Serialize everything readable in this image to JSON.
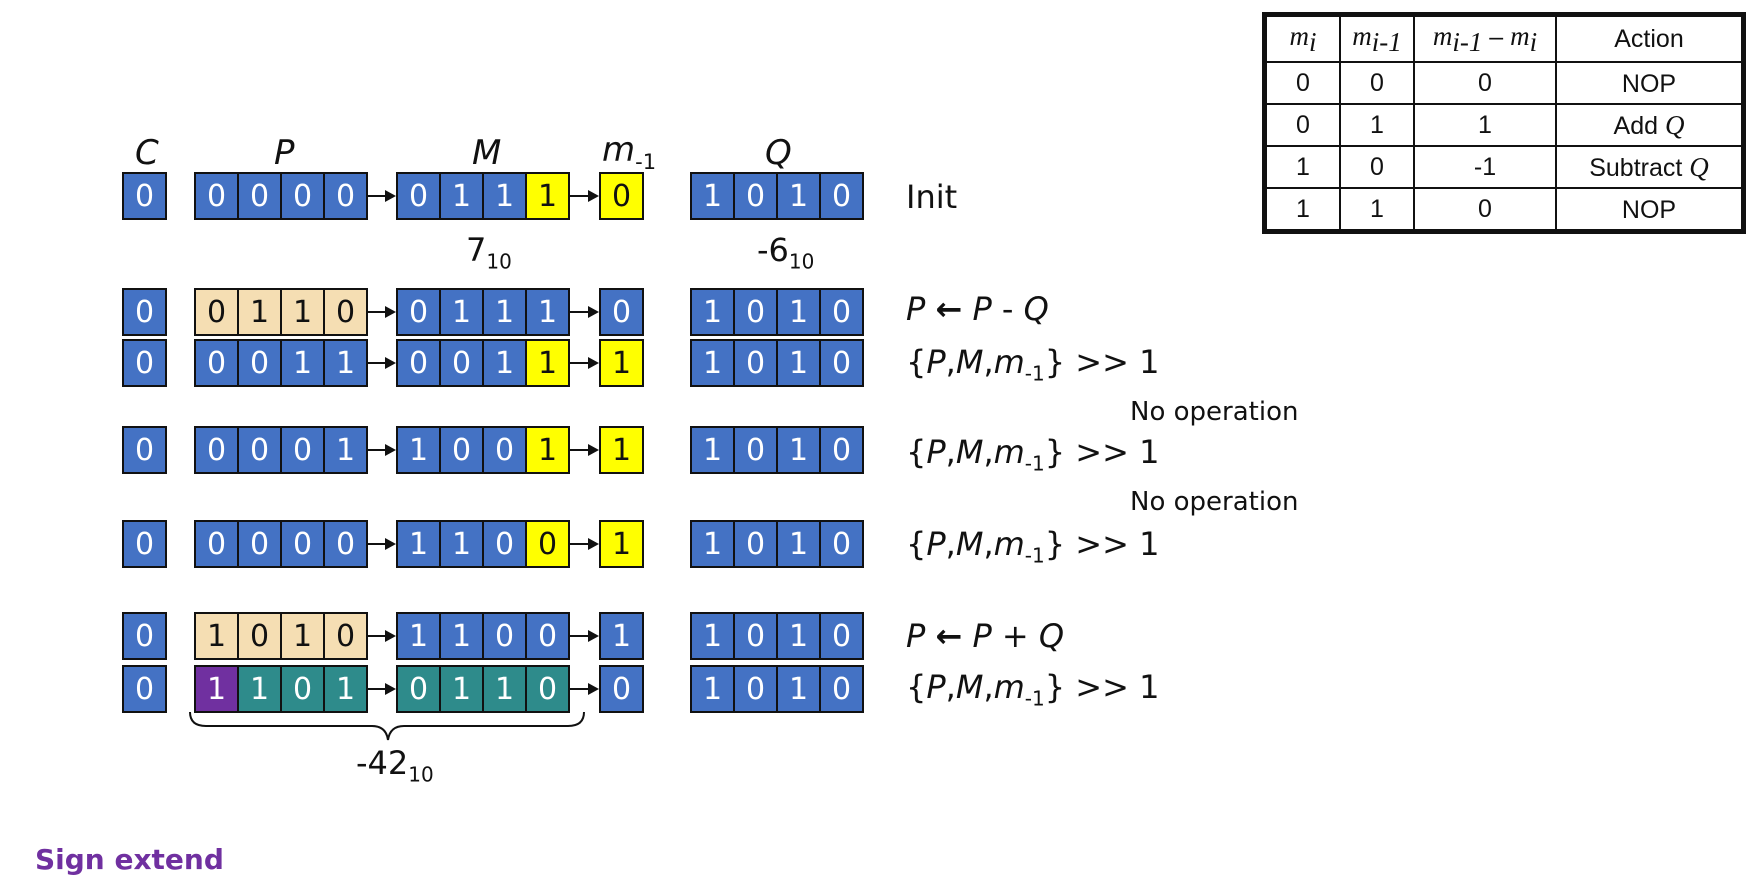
{
  "headers": {
    "c": "C",
    "p": "P",
    "m": "M",
    "m_minus1_base": "m",
    "m_minus1_sub": "-1",
    "q": "Q"
  },
  "colors": {
    "blue": "#4472c4",
    "yellow": "#ffff00",
    "tan": "#f5deb3",
    "teal": "#2e8b8b",
    "purple": "#7030a0"
  },
  "rows": [
    {
      "c": {
        "v": "0",
        "color": "blue"
      },
      "p": [
        {
          "v": "0",
          "color": "blue"
        },
        {
          "v": "0",
          "color": "blue"
        },
        {
          "v": "0",
          "color": "blue"
        },
        {
          "v": "0",
          "color": "blue"
        }
      ],
      "m": [
        {
          "v": "0",
          "color": "blue"
        },
        {
          "v": "1",
          "color": "blue"
        },
        {
          "v": "1",
          "color": "blue"
        },
        {
          "v": "1",
          "color": "yellow"
        }
      ],
      "m1": {
        "v": "0",
        "color": "yellow"
      },
      "q": [
        {
          "v": "1",
          "color": "blue"
        },
        {
          "v": "0",
          "color": "blue"
        },
        {
          "v": "1",
          "color": "blue"
        },
        {
          "v": "0",
          "color": "blue"
        }
      ],
      "label": "Init",
      "label_kind": "plain"
    },
    {
      "c": {
        "v": "0",
        "color": "blue"
      },
      "p": [
        {
          "v": "0",
          "color": "tan"
        },
        {
          "v": "1",
          "color": "tan"
        },
        {
          "v": "1",
          "color": "tan"
        },
        {
          "v": "0",
          "color": "tan"
        }
      ],
      "m": [
        {
          "v": "0",
          "color": "blue"
        },
        {
          "v": "1",
          "color": "blue"
        },
        {
          "v": "1",
          "color": "blue"
        },
        {
          "v": "1",
          "color": "blue"
        }
      ],
      "m1": {
        "v": "0",
        "color": "blue"
      },
      "q": [
        {
          "v": "1",
          "color": "blue"
        },
        {
          "v": "0",
          "color": "blue"
        },
        {
          "v": "1",
          "color": "blue"
        },
        {
          "v": "0",
          "color": "blue"
        }
      ],
      "label": "P ← P - Q",
      "label_kind": "op"
    },
    {
      "c": {
        "v": "0",
        "color": "blue"
      },
      "p": [
        {
          "v": "0",
          "color": "blue"
        },
        {
          "v": "0",
          "color": "blue"
        },
        {
          "v": "1",
          "color": "blue"
        },
        {
          "v": "1",
          "color": "blue"
        }
      ],
      "m": [
        {
          "v": "0",
          "color": "blue"
        },
        {
          "v": "0",
          "color": "blue"
        },
        {
          "v": "1",
          "color": "blue"
        },
        {
          "v": "1",
          "color": "yellow"
        }
      ],
      "m1": {
        "v": "1",
        "color": "yellow"
      },
      "q": [
        {
          "v": "1",
          "color": "blue"
        },
        {
          "v": "0",
          "color": "blue"
        },
        {
          "v": "1",
          "color": "blue"
        },
        {
          "v": "0",
          "color": "blue"
        }
      ],
      "label": "{P,M,m-1} >> 1",
      "label_kind": "shift"
    },
    {
      "c": {
        "v": "0",
        "color": "blue"
      },
      "p": [
        {
          "v": "0",
          "color": "blue"
        },
        {
          "v": "0",
          "color": "blue"
        },
        {
          "v": "0",
          "color": "blue"
        },
        {
          "v": "1",
          "color": "blue"
        }
      ],
      "m": [
        {
          "v": "1",
          "color": "blue"
        },
        {
          "v": "0",
          "color": "blue"
        },
        {
          "v": "0",
          "color": "blue"
        },
        {
          "v": "1",
          "color": "yellow"
        }
      ],
      "m1": {
        "v": "1",
        "color": "yellow"
      },
      "q": [
        {
          "v": "1",
          "color": "blue"
        },
        {
          "v": "0",
          "color": "blue"
        },
        {
          "v": "1",
          "color": "blue"
        },
        {
          "v": "0",
          "color": "blue"
        }
      ],
      "label": "{P,M,m-1} >> 1",
      "label_kind": "shift"
    },
    {
      "c": {
        "v": "0",
        "color": "blue"
      },
      "p": [
        {
          "v": "0",
          "color": "blue"
        },
        {
          "v": "0",
          "color": "blue"
        },
        {
          "v": "0",
          "color": "blue"
        },
        {
          "v": "0",
          "color": "blue"
        }
      ],
      "m": [
        {
          "v": "1",
          "color": "blue"
        },
        {
          "v": "1",
          "color": "blue"
        },
        {
          "v": "0",
          "color": "blue"
        },
        {
          "v": "0",
          "color": "yellow"
        }
      ],
      "m1": {
        "v": "1",
        "color": "yellow"
      },
      "q": [
        {
          "v": "1",
          "color": "blue"
        },
        {
          "v": "0",
          "color": "blue"
        },
        {
          "v": "1",
          "color": "blue"
        },
        {
          "v": "0",
          "color": "blue"
        }
      ],
      "label": "{P,M,m-1} >> 1",
      "label_kind": "shift"
    },
    {
      "c": {
        "v": "0",
        "color": "blue"
      },
      "p": [
        {
          "v": "1",
          "color": "tan"
        },
        {
          "v": "0",
          "color": "tan"
        },
        {
          "v": "1",
          "color": "tan"
        },
        {
          "v": "0",
          "color": "tan"
        }
      ],
      "m": [
        {
          "v": "1",
          "color": "blue"
        },
        {
          "v": "1",
          "color": "blue"
        },
        {
          "v": "0",
          "color": "blue"
        },
        {
          "v": "0",
          "color": "blue"
        }
      ],
      "m1": {
        "v": "1",
        "color": "blue"
      },
      "q": [
        {
          "v": "1",
          "color": "blue"
        },
        {
          "v": "0",
          "color": "blue"
        },
        {
          "v": "1",
          "color": "blue"
        },
        {
          "v": "0",
          "color": "blue"
        }
      ],
      "label": "P ← P + Q",
      "label_kind": "op"
    },
    {
      "c": {
        "v": "0",
        "color": "blue"
      },
      "p": [
        {
          "v": "1",
          "color": "purple"
        },
        {
          "v": "1",
          "color": "teal"
        },
        {
          "v": "0",
          "color": "teal"
        },
        {
          "v": "1",
          "color": "teal"
        }
      ],
      "m": [
        {
          "v": "0",
          "color": "teal"
        },
        {
          "v": "1",
          "color": "teal"
        },
        {
          "v": "1",
          "color": "teal"
        },
        {
          "v": "0",
          "color": "teal"
        }
      ],
      "m1": {
        "v": "0",
        "color": "blue"
      },
      "q": [
        {
          "v": "1",
          "color": "blue"
        },
        {
          "v": "0",
          "color": "blue"
        },
        {
          "v": "1",
          "color": "blue"
        },
        {
          "v": "0",
          "color": "blue"
        }
      ],
      "label": "{P,M,m-1} >> 1",
      "label_kind": "shift"
    }
  ],
  "notes": [
    "No operation",
    "No operation"
  ],
  "values": {
    "m_value": "7",
    "m_value_base": "10",
    "q_value": "-6",
    "q_value_base": "10",
    "result_value": "-42",
    "result_value_base": "10"
  },
  "sign_extend": "Sign extend",
  "truth_table": {
    "headers": {
      "mi": "m",
      "mi_sub": "i",
      "mi1": "m",
      "mi1_sub": "i-1",
      "diff_a": "m",
      "diff_a_sub": "i-1",
      "diff_op": " – ",
      "diff_b": "m",
      "diff_b_sub": "i",
      "action": "Action"
    },
    "rows": [
      {
        "mi": "0",
        "mi1": "0",
        "diff": "0",
        "action": "NOP",
        "action_var": ""
      },
      {
        "mi": "0",
        "mi1": "1",
        "diff": "1",
        "action": "Add ",
        "action_var": "Q"
      },
      {
        "mi": "1",
        "mi1": "0",
        "diff": "-1",
        "action": "Subtract ",
        "action_var": "Q"
      },
      {
        "mi": "1",
        "mi1": "1",
        "diff": "0",
        "action": "NOP",
        "action_var": ""
      }
    ]
  }
}
